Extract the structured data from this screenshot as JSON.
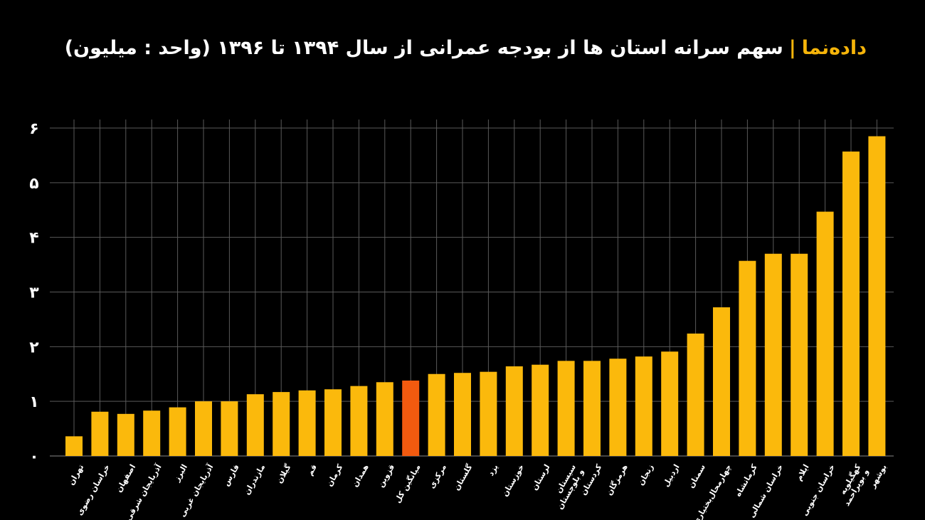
{
  "header": {
    "brand": "داده‌نما",
    "separator": "|",
    "title": "سهم سرانه استان ها از بودجه عمرانی از سال ۱۳۹۴ تا ۱۳۹۶ (واحد : میلیون)"
  },
  "colors": {
    "bar": "#fbb90c",
    "highlight": "#f25a0f",
    "grid": "#5a5a5a",
    "background": "#000000"
  },
  "chart_data": {
    "type": "bar",
    "title": "سهم سرانه استان ها از بودجه عمرانی از سال ۱۳۹۴ تا ۱۳۹۶ (واحد : میلیون)",
    "xlabel": "",
    "ylabel": "",
    "ylim": [
      0,
      6
    ],
    "grid": true,
    "yticks": [
      0,
      1,
      2,
      3,
      4,
      5,
      6
    ],
    "ytick_labels": [
      "۰",
      "۱",
      "۲",
      "۳",
      "۴",
      "۵",
      "۶"
    ],
    "highlight_category": "میانگین کل",
    "categories": [
      "تهران",
      "خراسان رضوی",
      "اصفهان",
      "آذربایجان شرقی",
      "البرز",
      "آذربایجان غربی",
      "فارس",
      "مازندران",
      "گیلان",
      "قم",
      "کرمان",
      "همدان",
      "قزوین",
      "میانگین کل",
      "مرکزی",
      "گلستان",
      "یزد",
      "خوزستان",
      "لرستان",
      "سیستان\nو بلوچستان",
      "کردستان",
      "هرمزگان",
      "زنجان",
      "اردبیل",
      "سمنان",
      "چهارمحال‌بختیاری",
      "کرمانشاه",
      "خراسان شمالی",
      "ایلام",
      "خراسان جنوبی",
      "کهگیلویه\nو بویراحمد",
      "بوشهر"
    ],
    "values": [
      0.36,
      0.81,
      0.77,
      0.83,
      0.89,
      1.0,
      1.0,
      1.13,
      1.17,
      1.2,
      1.22,
      1.28,
      1.35,
      1.38,
      1.5,
      1.52,
      1.54,
      1.64,
      1.67,
      1.74,
      1.74,
      1.78,
      1.82,
      1.91,
      2.24,
      2.72,
      3.57,
      3.7,
      3.7,
      4.47,
      5.57,
      5.85
    ]
  }
}
